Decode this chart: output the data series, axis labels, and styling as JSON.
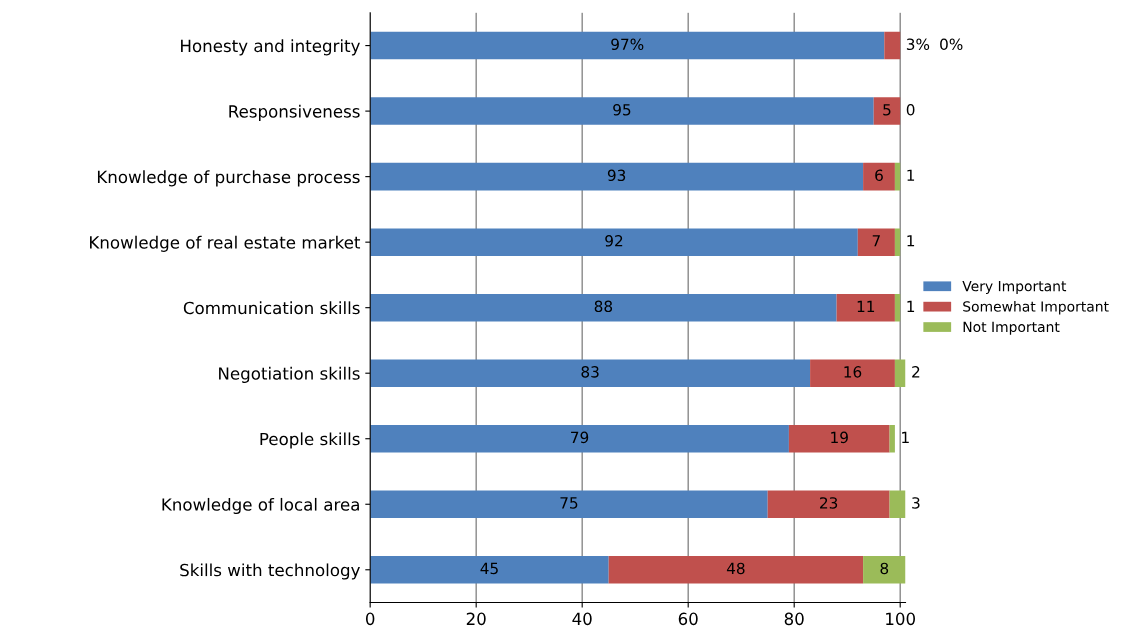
{
  "chart_data": {
    "type": "bar",
    "orientation": "horizontal",
    "stacked": true,
    "categories": [
      "Honesty and integrity",
      "Responsiveness",
      "Knowledge of purchase process",
      "Knowledge of real estate market",
      "Communication skills",
      "Negotiation skills",
      "People skills",
      "Knowledge of local area",
      "Skills with technology"
    ],
    "series": [
      {
        "name": "Very Important",
        "color": "#4f81bd",
        "values": [
          97,
          95,
          93,
          92,
          88,
          83,
          79,
          75,
          45
        ],
        "value_labels": [
          "97%",
          "95",
          "93",
          "92",
          "88",
          "83",
          "79",
          "75",
          "45"
        ]
      },
      {
        "name": "Somewhat Important",
        "color": "#c0504d",
        "values": [
          3,
          5,
          6,
          7,
          11,
          16,
          19,
          23,
          48
        ],
        "value_labels": [
          "3%",
          "5",
          "6",
          "7",
          "11",
          "16",
          "19",
          "23",
          "48"
        ]
      },
      {
        "name": "Not Important",
        "color": "#9bbb59",
        "values": [
          0,
          0,
          1,
          1,
          1,
          2,
          1,
          3,
          8
        ],
        "value_labels": [
          "0%",
          "0",
          "1",
          "1",
          "1",
          "2",
          "1",
          "3",
          "8"
        ]
      }
    ],
    "xlim": [
      0,
      101
    ],
    "xticks": [
      0,
      20,
      40,
      60,
      80,
      100
    ],
    "grid": "x",
    "legend": "right"
  }
}
